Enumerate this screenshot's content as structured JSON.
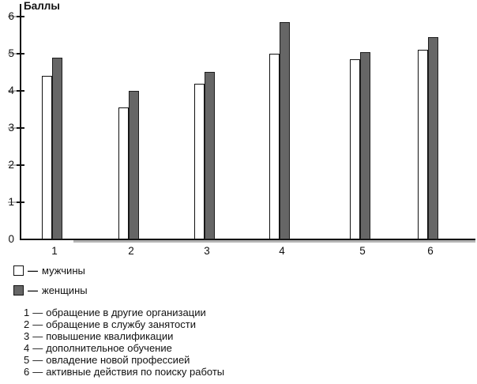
{
  "chart_data": {
    "type": "bar",
    "title": "",
    "ylabel": "Баллы",
    "xlabel": "",
    "categories": [
      "1",
      "2",
      "3",
      "4",
      "5",
      "6"
    ],
    "series": [
      {
        "name": "мужчины",
        "color": "#ffffff",
        "values": [
          4.4,
          3.55,
          4.2,
          5.0,
          4.85,
          5.1
        ]
      },
      {
        "name": "женщины",
        "color": "#666666",
        "values": [
          4.9,
          4.0,
          4.5,
          5.85,
          5.05,
          5.45
        ]
      }
    ],
    "ylim": [
      0,
      6
    ],
    "yticks": [
      0,
      1,
      2,
      3,
      4,
      5,
      6
    ],
    "grid": false,
    "legend_position": "below-left",
    "bar_outline_color": "#111111",
    "axis_color": "#111111",
    "tick_shadow_color": "#b4b4b4"
  },
  "legend": {
    "items": [
      {
        "dash": "—",
        "label": "мужчины"
      },
      {
        "dash": "—",
        "label": "женщины"
      }
    ]
  },
  "category_key": {
    "items": [
      {
        "num": "1",
        "dash": "—",
        "label": "обращение в другие организации"
      },
      {
        "num": "2",
        "dash": "—",
        "label": "обращение в службу занятости"
      },
      {
        "num": "3",
        "dash": "—",
        "label": "повышение квалификации"
      },
      {
        "num": "4",
        "dash": "—",
        "label": "дополнительное обучение"
      },
      {
        "num": "5",
        "dash": "—",
        "label": "овладение новой профессией"
      },
      {
        "num": "6",
        "dash": "—",
        "label": "активные действия по поиску работы"
      }
    ]
  }
}
